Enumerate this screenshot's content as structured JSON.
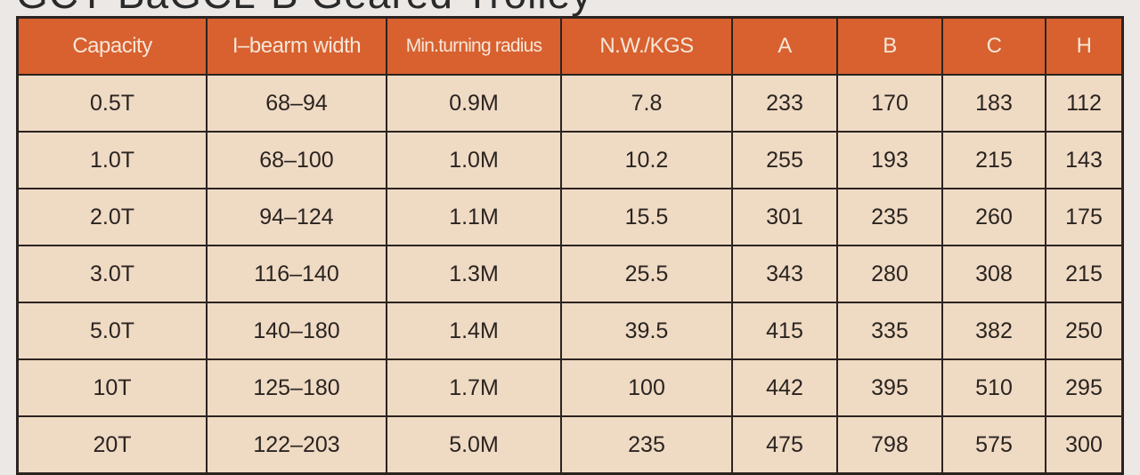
{
  "title": "GCT-BaGCL-B Geared Trolley",
  "colors": {
    "header_bg": "#d8612f",
    "header_text": "#f7e6d8",
    "cell_bg": "#efdac4",
    "border": "#2b2320"
  },
  "table": {
    "headers": [
      "Capacity",
      "I–bearm width",
      "Min.turning radius",
      "N.W./KGS",
      "A",
      "B",
      "C",
      "H"
    ],
    "rows": [
      [
        "0.5T",
        "68–94",
        "0.9M",
        "7.8",
        "233",
        "170",
        "183",
        "112"
      ],
      [
        "1.0T",
        "68–100",
        "1.0M",
        "10.2",
        "255",
        "193",
        "215",
        "143"
      ],
      [
        "2.0T",
        "94–124",
        "1.1M",
        "15.5",
        "301",
        "235",
        "260",
        "175"
      ],
      [
        "3.0T",
        "116–140",
        "1.3M",
        "25.5",
        "343",
        "280",
        "308",
        "215"
      ],
      [
        "5.0T",
        "140–180",
        "1.4M",
        "39.5",
        "415",
        "335",
        "382",
        "250"
      ],
      [
        "10T",
        "125–180",
        "1.7M",
        "100",
        "442",
        "395",
        "510",
        "295"
      ],
      [
        "20T",
        "122–203",
        "5.0M",
        "235",
        "475",
        "798",
        "575",
        "300"
      ]
    ]
  }
}
